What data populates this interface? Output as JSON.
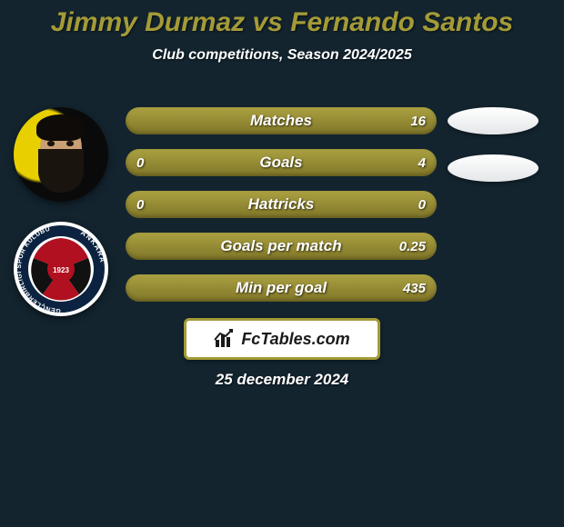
{
  "title": {
    "text": "Jimmy Durmaz vs Fernando Santos",
    "fontsize": 30,
    "color": "#a49b37"
  },
  "subtitle": {
    "text": "Club competitions, Season 2024/2025",
    "fontsize": 16,
    "color": "#ffffff"
  },
  "background_color": "#13242f",
  "avatars": {
    "player": {
      "name": "jimmy-durmaz",
      "bg_color": "#e8d000",
      "skin_color": "#c9a074",
      "hair_color": "#0e0b08"
    },
    "club_badge": {
      "name": "genclerbirligi",
      "outer_color": "#ffffff",
      "ring_color": "#0b2340",
      "stripe_red": "#b01020",
      "stripe_black": "#111111",
      "year": "1923"
    }
  },
  "stats": {
    "bar_bg_light": "#aba141",
    "bar_bg_dark": "#7f7528",
    "label_fontsize": 17,
    "value_fontsize": 15,
    "rows": [
      {
        "label": "Matches",
        "left": "",
        "right": "16"
      },
      {
        "label": "Goals",
        "left": "0",
        "right": "4"
      },
      {
        "label": "Hattricks",
        "left": "0",
        "right": "0"
      },
      {
        "label": "Goals per match",
        "left": "",
        "right": "0.25"
      },
      {
        "label": "Min per goal",
        "left": "",
        "right": "435"
      }
    ]
  },
  "right_ovals": {
    "count": 2,
    "color": "#e4e6e8"
  },
  "brand": {
    "text": "FcTables.com",
    "box_bg": "#ffffff",
    "box_border": "#a49b37",
    "text_color": "#1a1a1a",
    "fontsize": 18,
    "icon_color": "#1a1a1a"
  },
  "date": {
    "text": "25 december 2024",
    "fontsize": 17,
    "color": "#ffffff"
  }
}
